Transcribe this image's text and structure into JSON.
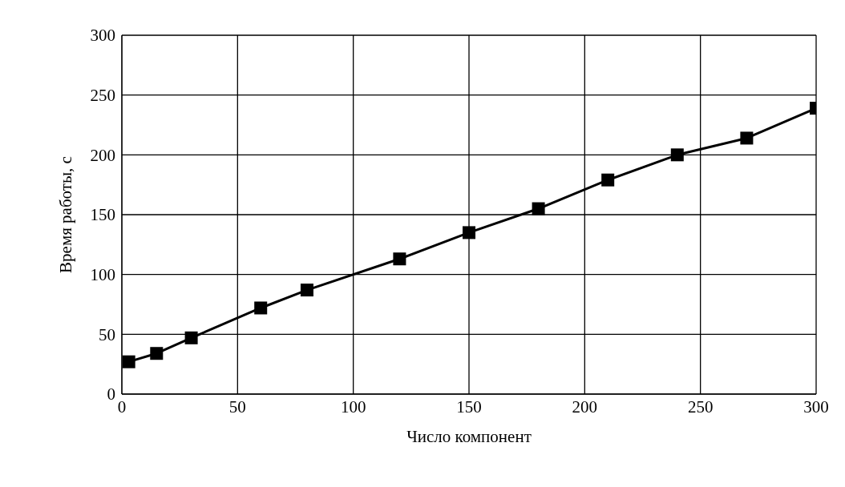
{
  "chart_data": {
    "type": "line",
    "xlabel": "Число компонент",
    "ylabel": "Время работы, с",
    "x": [
      3,
      15,
      30,
      60,
      80,
      120,
      150,
      180,
      210,
      240,
      270,
      300
    ],
    "series": [
      {
        "color": "#000000",
        "values": [
          27,
          34,
          47,
          72,
          87,
          113,
          135,
          155,
          179,
          200,
          214,
          239
        ]
      }
    ],
    "xlim": [
      0,
      300
    ],
    "xticks": [
      0,
      50,
      100,
      150,
      200,
      250,
      300
    ],
    "ylim": [
      0,
      300
    ],
    "yticks": [
      0,
      50,
      100,
      150,
      200,
      250,
      300
    ],
    "grid": true,
    "marker": "square",
    "line_style": "solid",
    "legend": false
  }
}
